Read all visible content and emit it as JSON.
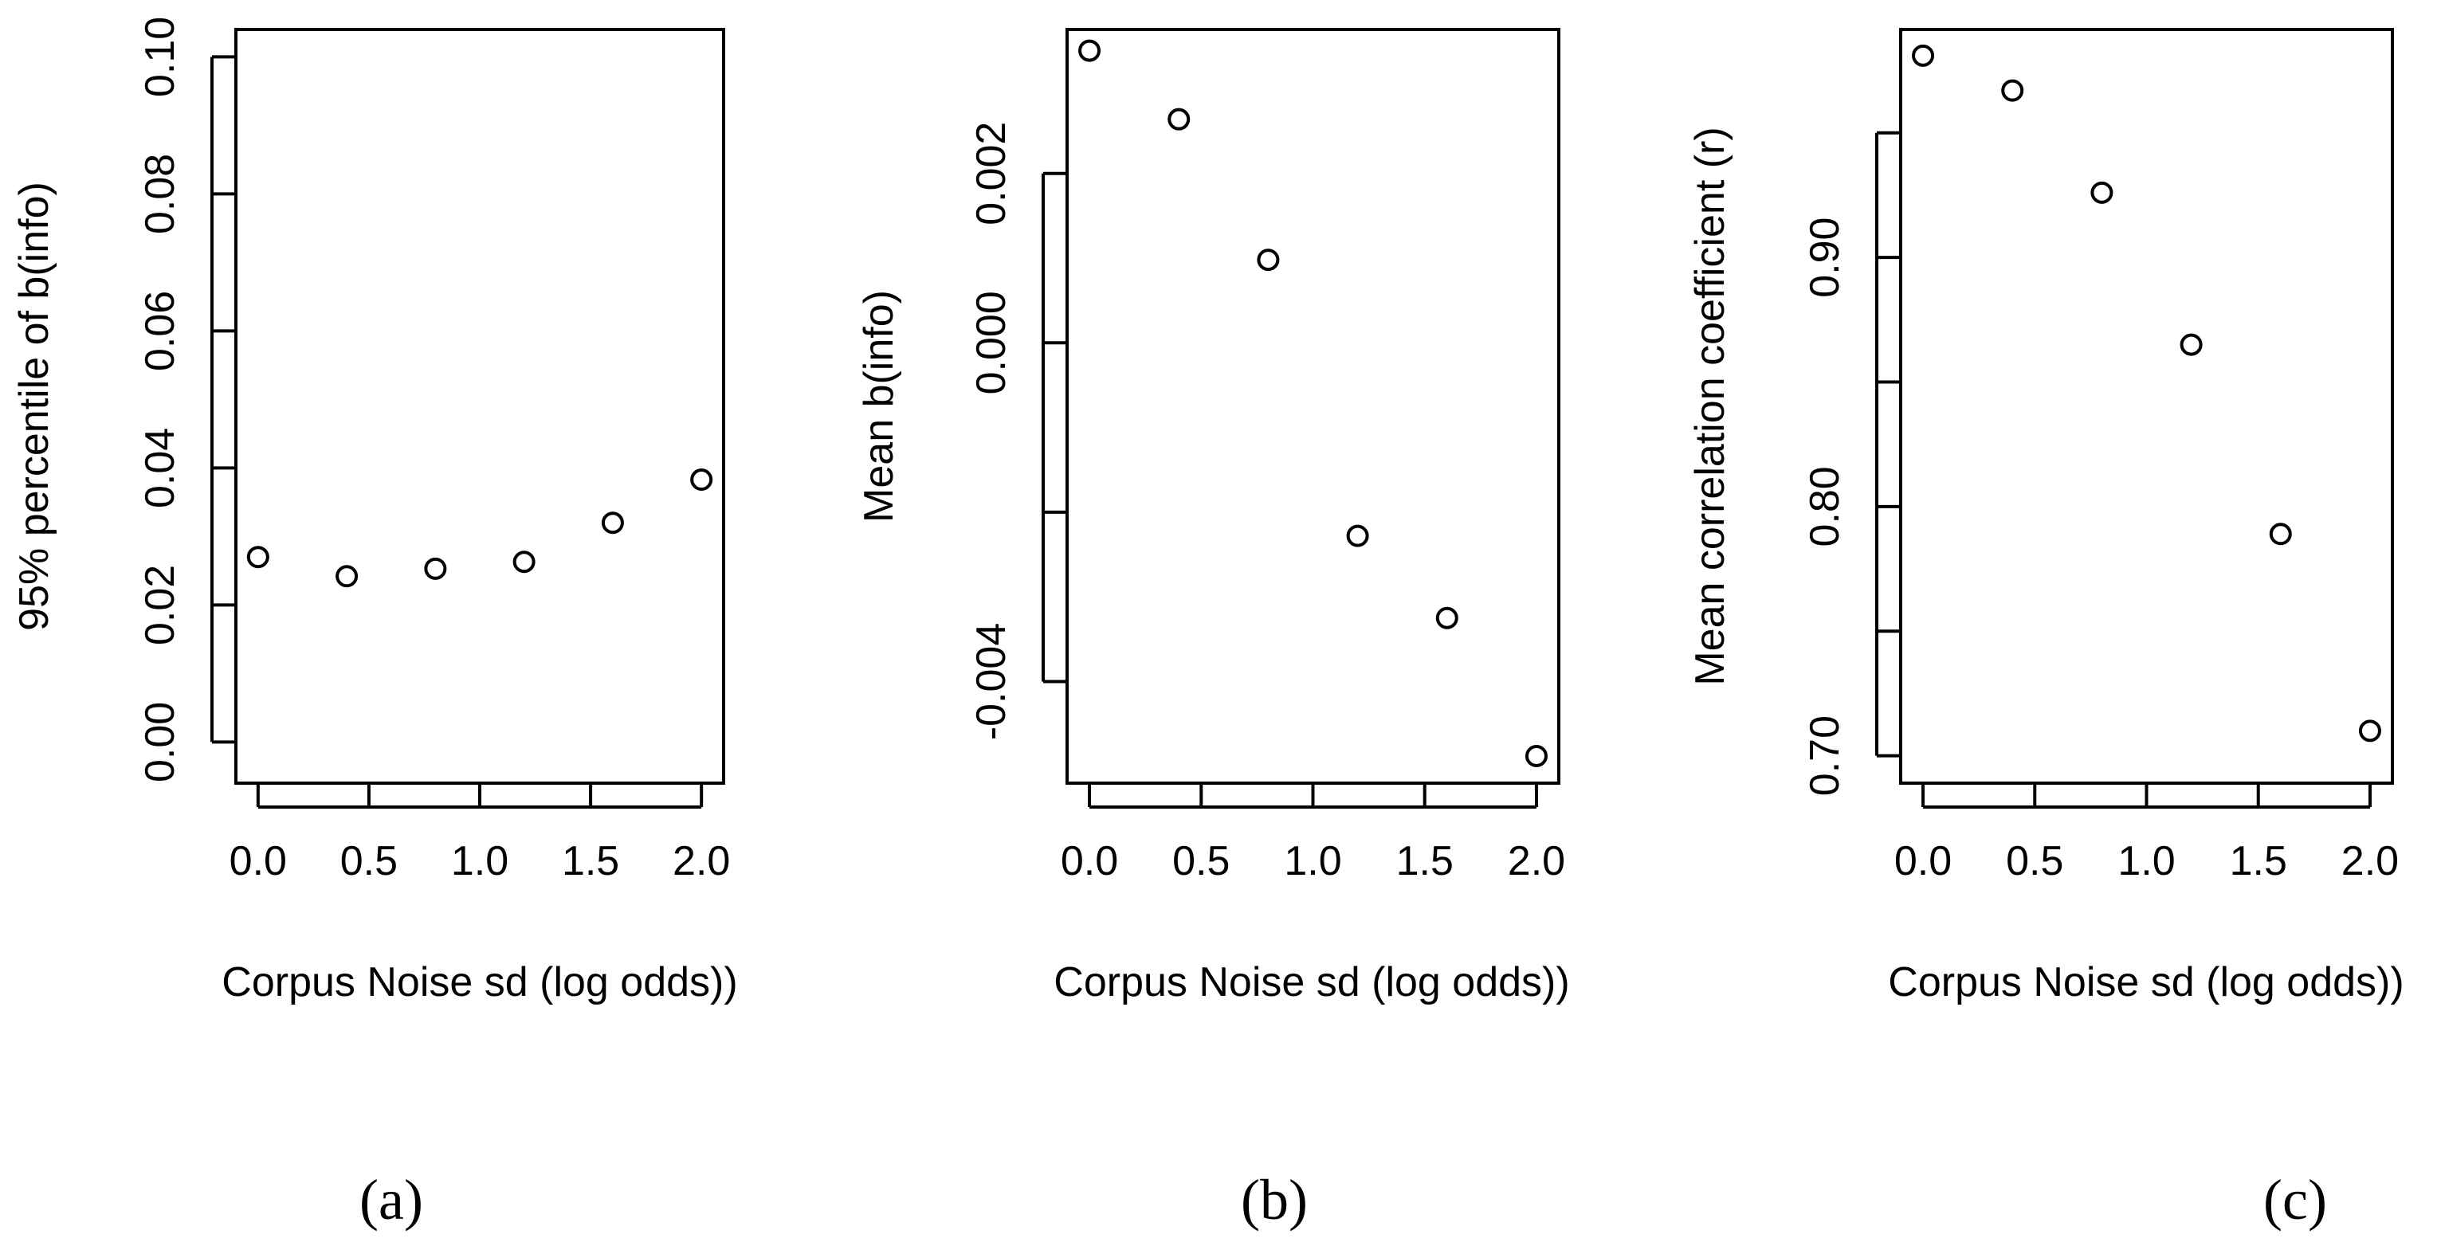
{
  "chart_data": [
    {
      "type": "scatter",
      "panel_label": "(a)",
      "xlabel": "Corpus Noise sd (log odds))",
      "ylabel": "95% percentile of b(info)",
      "x": [
        0.0,
        0.4,
        0.8,
        1.2,
        1.6,
        2.0
      ],
      "y": [
        0.027,
        0.0242,
        0.0253,
        0.0263,
        0.032,
        0.0383
      ],
      "xlim": [
        -0.1,
        2.1
      ],
      "ylim": [
        -0.006,
        0.104
      ],
      "xticks": [
        0.0,
        0.5,
        1.0,
        1.5,
        2.0
      ],
      "xtick_labels": [
        "0.0",
        "0.5",
        "1.0",
        "1.5",
        "2.0"
      ],
      "yticks": [
        0.0,
        0.02,
        0.04,
        0.06,
        0.08,
        0.1
      ],
      "ytick_labels": [
        "0.00",
        "0.02",
        "0.04",
        "0.06",
        "0.08",
        "0.10"
      ],
      "grid": false,
      "marker": "open-circle"
    },
    {
      "type": "scatter",
      "panel_label": "(b)",
      "xlabel": "Corpus Noise sd (log odds))",
      "ylabel": "Mean b(info)",
      "x": [
        0.0,
        0.4,
        0.8,
        1.2,
        1.6,
        2.0
      ],
      "y": [
        0.00345,
        0.00264,
        0.00098,
        -0.00228,
        -0.00325,
        -0.00488
      ],
      "xlim": [
        -0.1,
        2.1
      ],
      "ylim": [
        -0.0052,
        0.0037
      ],
      "xticks": [
        0.0,
        0.5,
        1.0,
        1.5,
        2.0
      ],
      "xtick_labels": [
        "0.0",
        "0.5",
        "1.0",
        "1.5",
        "2.0"
      ],
      "yticks": [
        -0.004,
        -0.002,
        0.0,
        0.002
      ],
      "ytick_labels": [
        "-0.004",
        "",
        "0.000",
        "0.002"
      ],
      "grid": false,
      "marker": "open-circle"
    },
    {
      "type": "scatter",
      "panel_label": "(c)",
      "xlabel": "Corpus Noise sd (log odds))",
      "ylabel": "Mean correlation coefficient (r)",
      "x": [
        0.0,
        0.4,
        0.8,
        1.2,
        1.6,
        2.0
      ],
      "y": [
        0.981,
        0.967,
        0.926,
        0.865,
        0.789,
        0.71
      ],
      "xlim": [
        -0.1,
        2.1
      ],
      "ylim": [
        0.689,
        0.9915
      ],
      "xticks": [
        0.0,
        0.5,
        1.0,
        1.5,
        2.0
      ],
      "xtick_labels": [
        "0.0",
        "0.5",
        "1.0",
        "1.5",
        "2.0"
      ],
      "yticks": [
        0.7,
        0.75,
        0.8,
        0.85,
        0.9,
        0.95
      ],
      "ytick_labels": [
        "0.70",
        "",
        "0.80",
        "",
        "0.90",
        ""
      ],
      "grid": false,
      "marker": "open-circle"
    }
  ]
}
